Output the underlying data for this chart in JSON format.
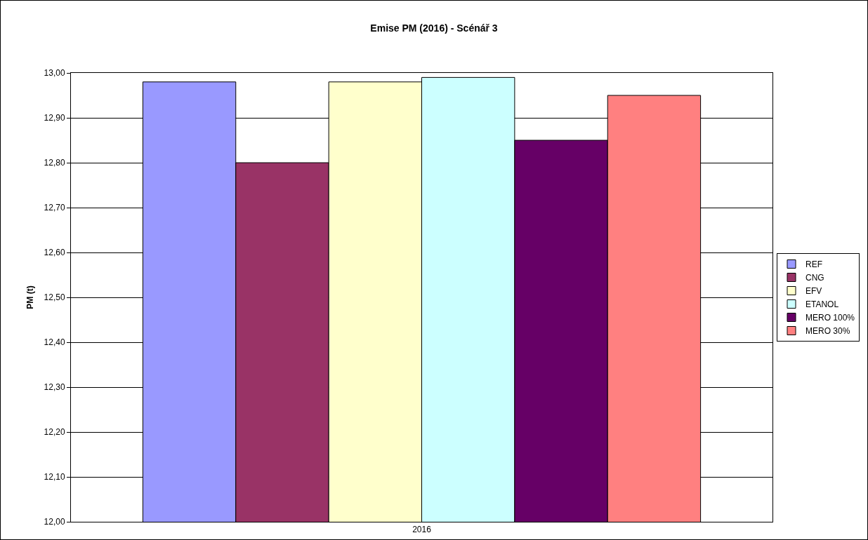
{
  "chart_data": {
    "type": "bar",
    "title": "Emise PM (2016) - Scénář 3",
    "ylabel": "PM (t)",
    "categories": [
      "2016"
    ],
    "series": [
      {
        "name": "REF",
        "color": "#9999ff",
        "values": [
          12.98
        ]
      },
      {
        "name": "CNG",
        "color": "#993366",
        "values": [
          12.8
        ]
      },
      {
        "name": "EFV",
        "color": "#ffffcc",
        "values": [
          12.98
        ]
      },
      {
        "name": "ETANOL",
        "color": "#ccffff",
        "values": [
          12.99
        ]
      },
      {
        "name": "MERO 100%",
        "color": "#660066",
        "values": [
          12.85
        ]
      },
      {
        "name": "MERO 30%",
        "color": "#ff8080",
        "values": [
          12.95
        ]
      }
    ],
    "ylim": [
      12.0,
      13.0
    ],
    "yticks": [
      {
        "value": 12.0,
        "label": "12,00"
      },
      {
        "value": 12.1,
        "label": "12,10"
      },
      {
        "value": 12.2,
        "label": "12,20"
      },
      {
        "value": 12.3,
        "label": "12,30"
      },
      {
        "value": 12.4,
        "label": "12,40"
      },
      {
        "value": 12.5,
        "label": "12,50"
      },
      {
        "value": 12.6,
        "label": "12,60"
      },
      {
        "value": 12.7,
        "label": "12,70"
      },
      {
        "value": 12.8,
        "label": "12,80"
      },
      {
        "value": 12.9,
        "label": "12,90"
      },
      {
        "value": 13.0,
        "label": "13,00"
      }
    ],
    "grid": "y",
    "legend": "right"
  }
}
